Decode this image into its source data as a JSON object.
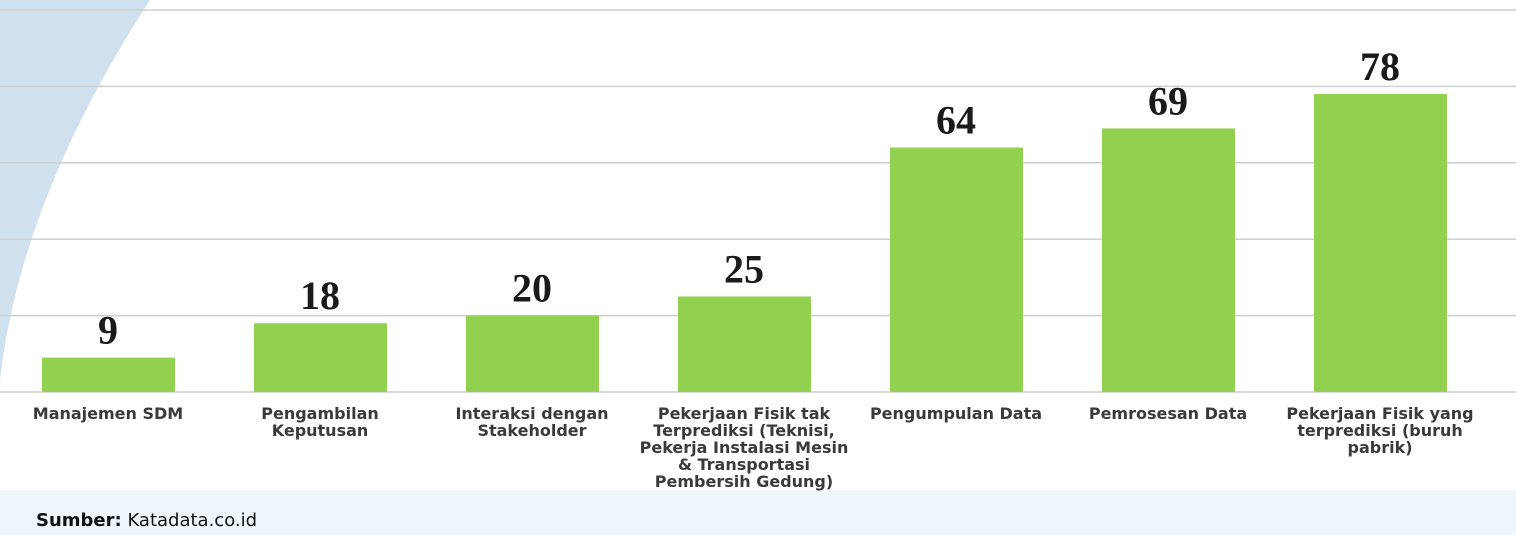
{
  "chart_data": {
    "type": "bar",
    "categories": [
      "Manajemen SDM",
      "Pengambilan Keputusan",
      "Interaksi dengan Stakeholder",
      "Pekerjaan Fisik tak Terprediksi (Teknisi, Pekerja Instalasi Mesin & Transportasi Pembersih Gedung)",
      "Pengumpulan Data",
      "Pemrosesan Data",
      "Pekerjaan Fisik yang terprediksi (buruh pabrik)"
    ],
    "values": [
      9,
      18,
      20,
      25,
      64,
      69,
      78
    ],
    "color": "#92d050",
    "ylim": [
      0,
      100
    ],
    "yticks": [
      0,
      20,
      40,
      60,
      80,
      100
    ],
    "grid": true,
    "source_prefix": "Sumber:",
    "source": "Katadata.co.id"
  }
}
